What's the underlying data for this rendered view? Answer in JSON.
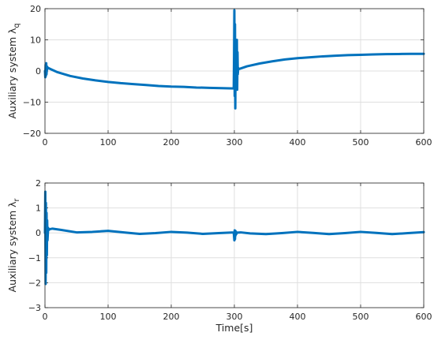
{
  "colors": {
    "series": "#0072bd",
    "axis": "#262626",
    "grid": "#dfdfdf"
  },
  "chart_data": [
    {
      "type": "line",
      "title": "",
      "xlabel": "",
      "ylabel": "Auxiliary system λ",
      "ylabel_sub": "q",
      "xlim": [
        0,
        600
      ],
      "ylim": [
        -20,
        20
      ],
      "grid": true,
      "xticks": [
        "0",
        "100",
        "200",
        "300",
        "400",
        "500",
        "600"
      ],
      "yticks": [
        "−20",
        "−10",
        "0",
        "10",
        "20"
      ],
      "series": [
        {
          "x": [
            0,
            0.5,
            1,
            1.5,
            2,
            2.5,
            3,
            3.5,
            4,
            5,
            10,
            20,
            40,
            60,
            80,
            100,
            120,
            140,
            160,
            180,
            200,
            220,
            240,
            260,
            280,
            299,
            299.5,
            300,
            300.5,
            301,
            301.5,
            302,
            302.5,
            303,
            303.5,
            304,
            304.5,
            305,
            305.5,
            306,
            307,
            310,
            320,
            340,
            360,
            380,
            400,
            420,
            440,
            460,
            480,
            500,
            520,
            540,
            560,
            580,
            600
          ],
          "y": [
            0,
            -2,
            2,
            -1.5,
            2.5,
            -1,
            1.5,
            0.5,
            1.2,
            1,
            0.5,
            -0.4,
            -1.6,
            -2.4,
            -3,
            -3.5,
            -3.9,
            -4.2,
            -4.5,
            -4.8,
            -5,
            -5.1,
            -5.3,
            -5.4,
            -5.5,
            -5.6,
            5,
            19.5,
            -8,
            15,
            -12,
            10,
            -5,
            8,
            -3,
            10,
            -6,
            6,
            -1,
            1,
            0.6,
            0.8,
            1.5,
            2.4,
            3.1,
            3.7,
            4.1,
            4.4,
            4.7,
            4.9,
            5.1,
            5.2,
            5.3,
            5.4,
            5.45,
            5.5,
            5.5
          ]
        }
      ]
    },
    {
      "type": "line",
      "title": "",
      "xlabel": "Time[s]",
      "ylabel": "Auxiliary system λ",
      "ylabel_sub": "r",
      "xlim": [
        0,
        600
      ],
      "ylim": [
        -3,
        2
      ],
      "grid": true,
      "xticks": [
        "0",
        "100",
        "200",
        "300",
        "400",
        "500",
        "600"
      ],
      "yticks": [
        "−3",
        "−2",
        "−1",
        "0",
        "1",
        "2"
      ],
      "series": [
        {
          "x": [
            0,
            0.5,
            1,
            1.5,
            2,
            2.5,
            3,
            3.5,
            4,
            5,
            6,
            8,
            12,
            25,
            50,
            75,
            100,
            125,
            150,
            175,
            200,
            225,
            250,
            275,
            299,
            300,
            300.5,
            301,
            301.5,
            302,
            302.5,
            303,
            304,
            305,
            310,
            325,
            350,
            375,
            400,
            425,
            450,
            475,
            500,
            525,
            550,
            575,
            600
          ],
          "y": [
            0,
            1.65,
            -2.05,
            1.2,
            -1.6,
            0.8,
            -0.9,
            0.5,
            -0.3,
            0.2,
            0.12,
            0.15,
            0.17,
            0.12,
            0.02,
            0.04,
            0.08,
            0.02,
            -0.04,
            -0.01,
            0.04,
            0.01,
            -0.04,
            -0.01,
            0.02,
            -0.3,
            0.1,
            -0.25,
            0.08,
            -0.1,
            0.05,
            -0.05,
            0,
            0.01,
            0.02,
            -0.02,
            -0.05,
            -0.01,
            0.04,
            0,
            -0.05,
            -0.01,
            0.04,
            0,
            -0.05,
            -0.01,
            0.03
          ]
        }
      ]
    }
  ]
}
